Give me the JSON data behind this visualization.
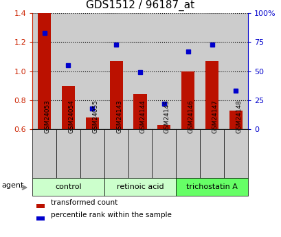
{
  "title": "GDS1512 / 96187_at",
  "samples": [
    "GSM24053",
    "GSM24054",
    "GSM24055",
    "GSM24143",
    "GSM24144",
    "GSM24145",
    "GSM24146",
    "GSM24147",
    "GSM24148"
  ],
  "red_values": [
    1.4,
    0.9,
    0.68,
    1.07,
    0.84,
    0.63,
    1.0,
    1.07,
    0.73
  ],
  "blue_values": [
    83,
    55,
    18,
    73,
    49,
    22,
    67,
    73,
    33
  ],
  "ylim_left": [
    0.6,
    1.4
  ],
  "ylim_right": [
    0,
    100
  ],
  "yticks_left": [
    0.6,
    0.8,
    1.0,
    1.2,
    1.4
  ],
  "yticks_right": [
    0,
    25,
    50,
    75,
    100
  ],
  "yticklabels_right": [
    "0",
    "25",
    "50",
    "75",
    "100%"
  ],
  "group_labels": [
    "control",
    "retinoic acid",
    "trichostatin A"
  ],
  "group_colors": [
    "#ccffcc",
    "#ccffcc",
    "#66ff66"
  ],
  "group_ranges": [
    [
      0,
      2
    ],
    [
      3,
      5
    ],
    [
      6,
      8
    ]
  ],
  "bar_color": "#bb1100",
  "dot_color": "#0000cc",
  "bar_baseline": 0.6,
  "bar_width": 0.55,
  "agent_label": "agent",
  "legend1": "transformed count",
  "legend2": "percentile rank within the sample",
  "title_fontsize": 11,
  "tick_color_left": "#cc2200",
  "tick_color_right": "#0000cc",
  "sample_box_color": "#cccccc",
  "plot_bg": "#ffffff"
}
